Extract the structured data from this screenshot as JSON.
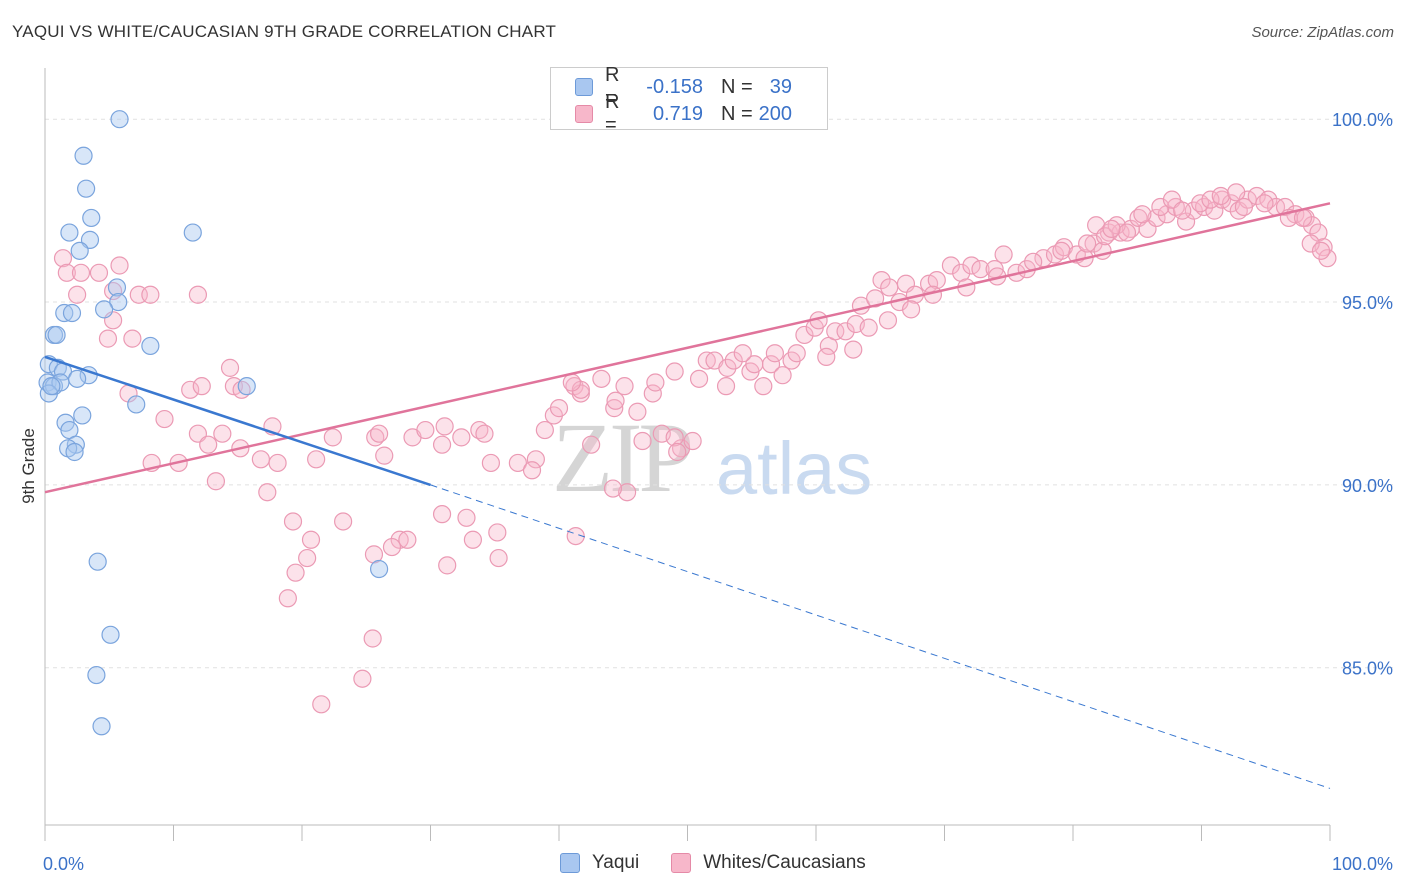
{
  "title": "YAQUI VS WHITE/CAUCASIAN 9TH GRADE CORRELATION CHART",
  "source": "Source: ZipAtlas.com",
  "watermark": {
    "part1": "ZIP",
    "part2": "atlas"
  },
  "legend": {
    "r_label": "R =",
    "n_label": "N =",
    "rows": [
      {
        "name": "Yaqui",
        "r": "-0.158",
        "n": "39",
        "color": "#a9c7f0"
      },
      {
        "name": "Whites/Caucasians",
        "r": "0.719",
        "n": "200",
        "color": "#f7b7ca"
      }
    ]
  },
  "colors": {
    "blue_line": "#3a78d0",
    "pink_line": "#e0749b",
    "tick_text": "#3b72c8",
    "grid": "#e1e1e1"
  },
  "chart_data": {
    "type": "scatter",
    "title": "YAQUI VS WHITE/CAUCASIAN 9TH GRADE CORRELATION CHART",
    "xlabel": "",
    "ylabel": "9th Grade",
    "xlim": [
      0,
      100
    ],
    "ylim": [
      80.7,
      101.4
    ],
    "x_tick_labels": [
      "0.0%",
      "100.0%"
    ],
    "y_ticks": [
      85,
      90,
      95,
      100
    ],
    "y_tick_labels": [
      "85.0%",
      "90.0%",
      "95.0%",
      "100.0%"
    ],
    "grid": true,
    "series": [
      {
        "name": "Yaqui",
        "color": "#a9c7f0",
        "trend": {
          "x0": 0,
          "y0": 93.5,
          "x1": 30,
          "y1": 90.0,
          "dashed_to_x": 100,
          "dashed_to_y": 81.7
        },
        "points": [
          [
            5.8,
            100.0
          ],
          [
            3.0,
            99.0
          ],
          [
            3.2,
            98.1
          ],
          [
            3.6,
            97.3
          ],
          [
            1.9,
            96.9
          ],
          [
            3.5,
            96.7
          ],
          [
            11.5,
            96.9
          ],
          [
            2.7,
            96.4
          ],
          [
            5.6,
            95.4
          ],
          [
            5.7,
            95.0
          ],
          [
            1.5,
            94.7
          ],
          [
            2.1,
            94.7
          ],
          [
            4.6,
            94.8
          ],
          [
            0.7,
            94.1
          ],
          [
            0.9,
            94.1
          ],
          [
            8.2,
            93.8
          ],
          [
            0.3,
            93.3
          ],
          [
            1.0,
            93.2
          ],
          [
            1.4,
            93.1
          ],
          [
            3.4,
            93.0
          ],
          [
            2.5,
            92.9
          ],
          [
            0.2,
            92.8
          ],
          [
            0.7,
            92.7
          ],
          [
            1.2,
            92.8
          ],
          [
            15.7,
            92.7
          ],
          [
            0.3,
            92.5
          ],
          [
            7.1,
            92.2
          ],
          [
            2.9,
            91.9
          ],
          [
            1.6,
            91.7
          ],
          [
            1.9,
            91.5
          ],
          [
            2.4,
            91.1
          ],
          [
            1.8,
            91.0
          ],
          [
            2.3,
            90.9
          ],
          [
            26.0,
            87.7
          ],
          [
            4.1,
            87.9
          ],
          [
            5.1,
            85.9
          ],
          [
            4.0,
            84.8
          ],
          [
            4.4,
            83.4
          ],
          [
            0.5,
            92.7
          ]
        ],
        "labels": []
      },
      {
        "name": "Whites/Caucasians",
        "color": "#f7b7ca",
        "trend": {
          "x0": 0,
          "y0": 89.8,
          "x1": 100,
          "y1": 97.7
        },
        "points": [
          [
            1.4,
            96.2
          ],
          [
            1.7,
            95.8
          ],
          [
            2.5,
            95.2
          ],
          [
            2.8,
            95.8
          ],
          [
            4.2,
            95.8
          ],
          [
            5.3,
            95.3
          ],
          [
            5.8,
            96.0
          ],
          [
            7.3,
            95.2
          ],
          [
            8.2,
            95.2
          ],
          [
            11.9,
            95.2
          ],
          [
            5.3,
            94.5
          ],
          [
            4.9,
            94.0
          ],
          [
            6.8,
            94.0
          ],
          [
            11.3,
            92.6
          ],
          [
            12.2,
            92.7
          ],
          [
            14.4,
            93.2
          ],
          [
            14.7,
            92.7
          ],
          [
            15.3,
            92.6
          ],
          [
            6.5,
            92.5
          ],
          [
            9.3,
            91.8
          ],
          [
            11.9,
            91.4
          ],
          [
            13.8,
            91.4
          ],
          [
            15.2,
            91.0
          ],
          [
            17.7,
            91.6
          ],
          [
            12.7,
            91.1
          ],
          [
            8.3,
            90.6
          ],
          [
            10.4,
            90.6
          ],
          [
            13.3,
            90.1
          ],
          [
            16.8,
            90.7
          ],
          [
            18.1,
            90.6
          ],
          [
            21.1,
            90.7
          ],
          [
            17.3,
            89.8
          ],
          [
            22.4,
            91.3
          ],
          [
            25.7,
            91.3
          ],
          [
            26.0,
            91.4
          ],
          [
            26.4,
            90.8
          ],
          [
            28.6,
            91.3
          ],
          [
            29.6,
            91.5
          ],
          [
            30.9,
            91.1
          ],
          [
            31.1,
            91.6
          ],
          [
            32.4,
            91.3
          ],
          [
            33.8,
            91.5
          ],
          [
            34.2,
            91.4
          ],
          [
            27.6,
            88.5
          ],
          [
            28.2,
            88.5
          ],
          [
            27.0,
            88.3
          ],
          [
            23.2,
            89.0
          ],
          [
            25.6,
            88.1
          ],
          [
            19.3,
            89.0
          ],
          [
            20.7,
            88.5
          ],
          [
            19.5,
            87.6
          ],
          [
            20.4,
            88.0
          ],
          [
            18.9,
            86.9
          ],
          [
            24.7,
            84.7
          ],
          [
            25.5,
            85.8
          ],
          [
            21.5,
            84.0
          ],
          [
            30.9,
            89.2
          ],
          [
            31.3,
            87.8
          ],
          [
            32.8,
            89.1
          ],
          [
            33.3,
            88.5
          ],
          [
            35.2,
            88.7
          ],
          [
            35.3,
            88.0
          ],
          [
            36.8,
            90.6
          ],
          [
            38.9,
            91.5
          ],
          [
            39.6,
            91.9
          ],
          [
            40.0,
            92.1
          ],
          [
            38.2,
            90.7
          ],
          [
            34.7,
            90.6
          ],
          [
            37.9,
            90.4
          ],
          [
            42.5,
            91.1
          ],
          [
            41.2,
            92.7
          ],
          [
            41.7,
            92.5
          ],
          [
            43.3,
            92.9
          ],
          [
            41.7,
            92.6
          ],
          [
            41.0,
            92.8
          ],
          [
            44.3,
            92.1
          ],
          [
            44.4,
            92.3
          ],
          [
            45.1,
            92.7
          ],
          [
            46.1,
            92.0
          ],
          [
            47.3,
            92.5
          ],
          [
            47.5,
            92.8
          ],
          [
            46.5,
            91.2
          ],
          [
            48.0,
            91.4
          ],
          [
            49.5,
            91.0
          ],
          [
            49.0,
            91.3
          ],
          [
            50.4,
            91.2
          ],
          [
            49.2,
            90.9
          ],
          [
            45.3,
            89.8
          ],
          [
            44.2,
            89.9
          ],
          [
            41.3,
            88.6
          ],
          [
            49.0,
            93.1
          ],
          [
            50.9,
            92.9
          ],
          [
            51.5,
            93.4
          ],
          [
            52.1,
            93.4
          ],
          [
            53.1,
            93.2
          ],
          [
            53.0,
            92.7
          ],
          [
            53.6,
            93.4
          ],
          [
            54.9,
            93.1
          ],
          [
            55.2,
            93.3
          ],
          [
            55.9,
            92.7
          ],
          [
            56.5,
            93.3
          ],
          [
            57.4,
            93.0
          ],
          [
            58.1,
            93.4
          ],
          [
            59.1,
            94.1
          ],
          [
            59.9,
            94.3
          ],
          [
            60.2,
            94.5
          ],
          [
            61.0,
            93.8
          ],
          [
            61.5,
            94.2
          ],
          [
            62.3,
            94.2
          ],
          [
            63.1,
            94.4
          ],
          [
            64.1,
            94.3
          ],
          [
            63.5,
            94.9
          ],
          [
            64.6,
            95.1
          ],
          [
            65.1,
            95.6
          ],
          [
            65.7,
            95.4
          ],
          [
            66.5,
            95.0
          ],
          [
            67.0,
            95.5
          ],
          [
            67.7,
            95.2
          ],
          [
            68.8,
            95.5
          ],
          [
            69.4,
            95.6
          ],
          [
            70.5,
            96.0
          ],
          [
            71.3,
            95.8
          ],
          [
            72.1,
            96.0
          ],
          [
            72.8,
            95.9
          ],
          [
            73.9,
            95.9
          ],
          [
            74.6,
            96.3
          ],
          [
            75.6,
            95.8
          ],
          [
            76.4,
            95.9
          ],
          [
            77.7,
            96.2
          ],
          [
            78.6,
            96.3
          ],
          [
            79.3,
            96.5
          ],
          [
            80.3,
            96.3
          ],
          [
            80.9,
            96.2
          ],
          [
            81.6,
            96.6
          ],
          [
            82.3,
            96.4
          ],
          [
            82.8,
            96.9
          ],
          [
            83.7,
            96.9
          ],
          [
            84.5,
            97.0
          ],
          [
            85.1,
            97.3
          ],
          [
            85.8,
            97.0
          ],
          [
            86.5,
            97.3
          ],
          [
            87.3,
            97.4
          ],
          [
            88.0,
            97.6
          ],
          [
            88.8,
            97.2
          ],
          [
            89.4,
            97.5
          ],
          [
            90.2,
            97.6
          ],
          [
            91.0,
            97.5
          ],
          [
            91.6,
            97.8
          ],
          [
            92.3,
            97.7
          ],
          [
            92.9,
            97.5
          ],
          [
            93.6,
            97.8
          ],
          [
            94.3,
            97.9
          ],
          [
            95.2,
            97.8
          ],
          [
            95.8,
            97.6
          ],
          [
            96.5,
            97.6
          ],
          [
            97.3,
            97.4
          ],
          [
            98.1,
            97.3
          ],
          [
            98.6,
            97.1
          ],
          [
            99.1,
            96.9
          ],
          [
            99.5,
            96.5
          ],
          [
            99.8,
            96.2
          ],
          [
            81.8,
            97.1
          ],
          [
            82.5,
            96.8
          ],
          [
            83.4,
            97.1
          ],
          [
            84.2,
            96.9
          ],
          [
            85.4,
            97.4
          ],
          [
            86.8,
            97.6
          ],
          [
            87.7,
            97.8
          ],
          [
            88.5,
            97.5
          ],
          [
            89.9,
            97.7
          ],
          [
            90.7,
            97.8
          ],
          [
            91.5,
            97.9
          ],
          [
            92.7,
            98.0
          ],
          [
            93.3,
            97.6
          ],
          [
            94.9,
            97.7
          ],
          [
            96.8,
            97.3
          ],
          [
            97.9,
            97.3
          ],
          [
            98.5,
            96.6
          ],
          [
            99.3,
            96.4
          ],
          [
            54.3,
            93.6
          ],
          [
            56.8,
            93.6
          ],
          [
            58.5,
            93.6
          ],
          [
            60.8,
            93.5
          ],
          [
            62.9,
            93.7
          ],
          [
            65.6,
            94.5
          ],
          [
            67.4,
            94.8
          ],
          [
            69.1,
            95.2
          ],
          [
            71.7,
            95.4
          ],
          [
            74.1,
            95.7
          ],
          [
            76.9,
            96.1
          ],
          [
            79.1,
            96.4
          ],
          [
            81.1,
            96.6
          ],
          [
            83.0,
            97.0
          ]
        ],
        "labels": []
      }
    ]
  }
}
